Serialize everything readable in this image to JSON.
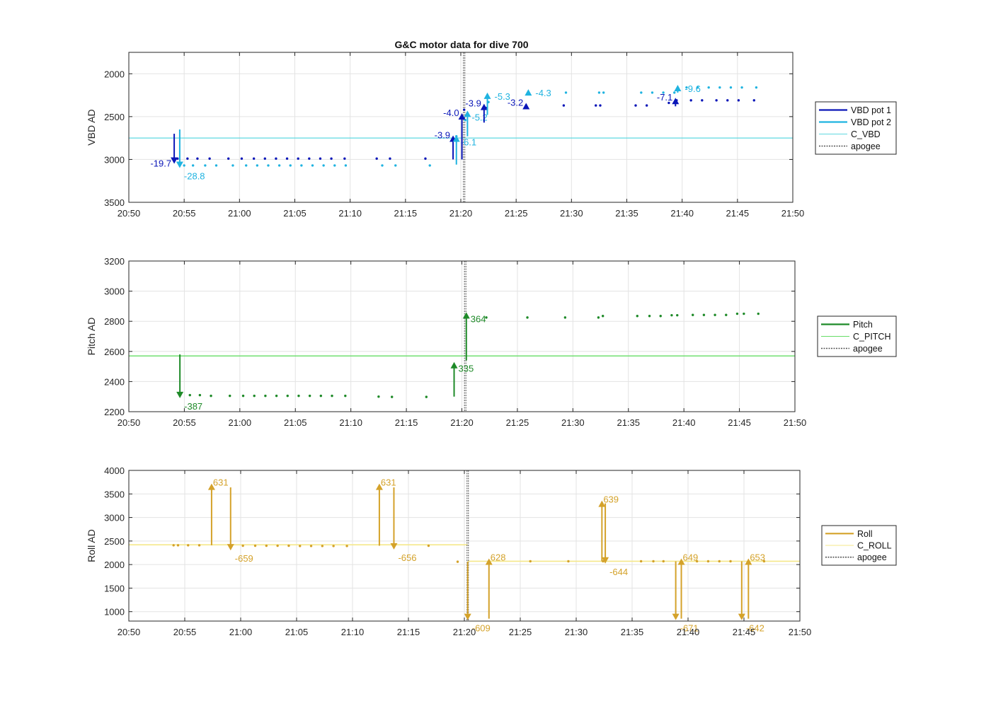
{
  "figure_title": "G&C motor data for dive 700",
  "time_ticks": [
    "20:50",
    "20:55",
    "21:00",
    "21:05",
    "21:10",
    "21:15",
    "21:20",
    "21:25",
    "21:30",
    "21:35",
    "21:40",
    "21:45",
    "21:50"
  ],
  "apogee_time": "21:20.3",
  "chart_data": [
    {
      "type": "scatter",
      "name": "vbd",
      "ylabel": "VBD AD",
      "xlim": [
        "20:50",
        "21:50"
      ],
      "ylim": [
        3500,
        1750
      ],
      "y_reversed": true,
      "yticks": [
        2000,
        2500,
        3000,
        3500
      ],
      "grid": true,
      "legend_position": "right",
      "legend": [
        {
          "label": "VBD pot 1",
          "color": "#0a16b8",
          "style": "line-thick"
        },
        {
          "label": "VBD pot 2",
          "color": "#1fb3e0",
          "style": "line-thick"
        },
        {
          "label": "C_VBD",
          "color": "#5fd8e0",
          "style": "line-thin"
        },
        {
          "label": "apogee",
          "color": "#555555",
          "style": "dotted"
        }
      ],
      "reference_line": {
        "label": "C_VBD",
        "y": 2750,
        "color": "#5fd8e0"
      },
      "series": [
        {
          "name": "VBD pot 1",
          "color": "#0a16b8",
          "offset_x": 0,
          "x": [
            "20:54.4",
            "20:55.3",
            "20:56.2",
            "20:57.3",
            "20:59.0",
            "21:00.2",
            "21:01.3",
            "21:02.3",
            "21:03.3",
            "21:04.3",
            "21:05.3",
            "21:06.3",
            "21:07.3",
            "21:08.3",
            "21:09.5",
            "21:12.4",
            "21:13.6",
            "21:16.8",
            "21:19.3",
            "21:20.3",
            "21:22.3",
            "21:25.9",
            "21:29.3",
            "21:32.2",
            "21:32.6",
            "21:35.8",
            "21:36.8",
            "21:38.8",
            "21:39.5",
            "21:40.8",
            "21:41.8",
            "21:43.1",
            "21:44.1",
            "21:45.1",
            "21:46.5"
          ],
          "y": [
            2990,
            2990,
            2990,
            2990,
            2990,
            2990,
            2990,
            2990,
            2990,
            2990,
            2990,
            2990,
            2990,
            2990,
            2990,
            2990,
            2990,
            2990,
            2780,
            2420,
            2400,
            2370,
            2370,
            2370,
            2370,
            2370,
            2370,
            2340,
            2310,
            2310,
            2310,
            2310,
            2310,
            2310,
            2310
          ]
        },
        {
          "name": "VBD pot 2",
          "color": "#1fb3e0",
          "offset_x": 0,
          "x": [
            "20:54.6",
            "20:55.0",
            "20:55.8",
            "20:56.9",
            "20:57.9",
            "20:59.4",
            "21:00.6",
            "21:01.6",
            "21:02.6",
            "21:03.6",
            "21:04.6",
            "21:05.6",
            "21:06.6",
            "21:07.6",
            "21:08.6",
            "21:09.6",
            "21:12.9",
            "21:14.1",
            "21:17.2",
            "21:19.6",
            "21:20.4",
            "21:22.5",
            "21:26.1",
            "21:29.5",
            "21:32.5",
            "21:32.9",
            "21:36.3",
            "21:37.3",
            "21:38.3",
            "21:39.3",
            "21:40.4",
            "21:41.4",
            "21:42.4",
            "21:43.4",
            "21:44.4",
            "21:45.4",
            "21:46.7"
          ],
          "y": [
            3070,
            3070,
            3070,
            3070,
            3070,
            3070,
            3070,
            3070,
            3070,
            3070,
            3070,
            3070,
            3070,
            3070,
            3070,
            3070,
            3070,
            3070,
            3070,
            2730,
            2540,
            2330,
            2220,
            2220,
            2220,
            2220,
            2220,
            2220,
            2220,
            2220,
            2160,
            2160,
            2160,
            2160,
            2160,
            2160,
            2160
          ]
        }
      ],
      "arrows": [
        {
          "x": "20:54.1",
          "y_from": 2700,
          "y_to": 3050,
          "color": "#0a16b8",
          "label": "-19.7",
          "label_side": "left"
        },
        {
          "x": "20:54.6",
          "y_from": 2650,
          "y_to": 3100,
          "color": "#1fb3e0",
          "label": "-28.8",
          "label_side": "right-below"
        },
        {
          "x": "21:19.3",
          "y_from": 3000,
          "y_to": 2720,
          "color": "#0a16b8",
          "label": "-3.9",
          "label_side": "left"
        },
        {
          "x": "21:19.6",
          "y_from": 3060,
          "y_to": 2720,
          "color": "#1fb3e0",
          "label": "-6.1",
          "label_side": "right-below"
        },
        {
          "x": "21:20.1",
          "y_from": 3000,
          "y_to": 2460,
          "color": "#0a16b8",
          "label": "-4.0",
          "label_side": "left"
        },
        {
          "x": "21:20.6",
          "y_from": 2730,
          "y_to": 2430,
          "color": "#1fb3e0",
          "label": "-5.2",
          "label_side": "right-below"
        },
        {
          "x": "21:22.1",
          "y_from": 2570,
          "y_to": 2350,
          "color": "#0a16b8",
          "label": "-3.9",
          "label_side": "left"
        },
        {
          "x": "21:22.4",
          "y_from": 2480,
          "y_to": 2220,
          "color": "#1fb3e0",
          "label": "-5.3",
          "label_side": "right"
        },
        {
          "x": "21:25.9",
          "y_from": 2400,
          "y_to": 2340,
          "color": "#0a16b8",
          "label": "-3.2",
          "label_side": "left"
        },
        {
          "x": "21:26.1",
          "y_from": 2250,
          "y_to": 2180,
          "color": "#1fb3e0",
          "label": "-4.3",
          "label_side": "right"
        },
        {
          "x": "21:39.4",
          "y_from": 2380,
          "y_to": 2280,
          "color": "#0a16b8",
          "label": "-7.1",
          "label_side": "left"
        },
        {
          "x": "21:39.6",
          "y_from": 2220,
          "y_to": 2130,
          "color": "#1fb3e0",
          "label": "-9.6",
          "label_side": "right"
        }
      ]
    },
    {
      "type": "scatter",
      "name": "pitch",
      "ylabel": "Pitch AD",
      "xlim": [
        "20:50",
        "21:50"
      ],
      "ylim": [
        2200,
        3200
      ],
      "y_reversed": false,
      "yticks": [
        2200,
        2400,
        2600,
        2800,
        3000,
        3200
      ],
      "grid": true,
      "legend_position": "right",
      "legend": [
        {
          "label": "Pitch",
          "color": "#1e8a28",
          "style": "line-thick"
        },
        {
          "label": "C_PITCH",
          "color": "#66dd66",
          "style": "line-thin"
        },
        {
          "label": "apogee",
          "color": "#555555",
          "style": "dotted"
        }
      ],
      "reference_line": {
        "label": "C_PITCH",
        "y": 2570,
        "color": "#66dd66"
      },
      "series": [
        {
          "name": "Pitch",
          "color": "#1e8a28",
          "x": [
            "20:55.5",
            "20:56.4",
            "20:57.4",
            "20:59.1",
            "21:00.3",
            "21:01.3",
            "21:02.3",
            "21:03.3",
            "21:04.3",
            "21:05.3",
            "21:06.3",
            "21:07.3",
            "21:08.3",
            "21:09.5",
            "21:12.5",
            "21:13.7",
            "21:16.8",
            "21:22.2",
            "21:25.9",
            "21:29.3",
            "21:32.3",
            "21:32.7",
            "21:35.8",
            "21:36.9",
            "21:37.9",
            "21:38.9",
            "21:39.4",
            "21:40.8",
            "21:41.8",
            "21:42.8",
            "21:43.8",
            "21:44.8",
            "21:45.4",
            "21:46.7"
          ],
          "y": [
            2310,
            2310,
            2305,
            2305,
            2305,
            2305,
            2305,
            2305,
            2305,
            2305,
            2305,
            2305,
            2305,
            2305,
            2300,
            2298,
            2298,
            2825,
            2825,
            2825,
            2825,
            2835,
            2835,
            2835,
            2835,
            2840,
            2840,
            2842,
            2842,
            2842,
            2842,
            2850,
            2850,
            2850
          ]
        }
      ],
      "arrows": [
        {
          "x": "20:54.6",
          "y_from": 2580,
          "y_to": 2290,
          "color": "#1e8a28",
          "label": "-387",
          "label_side": "right-below"
        },
        {
          "x": "21:19.3",
          "y_from": 2300,
          "y_to": 2530,
          "color": "#1e8a28",
          "label": "335",
          "label_side": "right-below"
        },
        {
          "x": "21:20.4",
          "y_from": 2540,
          "y_to": 2860,
          "color": "#1e8a28",
          "label": "364",
          "label_side": "right-below"
        }
      ]
    },
    {
      "type": "scatter",
      "name": "roll",
      "ylabel": "Roll AD",
      "xlim": [
        "20:50",
        "21:50"
      ],
      "ylim": [
        800,
        4000
      ],
      "y_reversed": false,
      "yticks": [
        1000,
        1500,
        2000,
        2500,
        3000,
        3500,
        4000
      ],
      "grid": true,
      "legend_position": "right",
      "legend": [
        {
          "label": "Roll",
          "color": "#d4a22a",
          "style": "line-thick"
        },
        {
          "label": "C_ROLL",
          "color": "#f5e88a",
          "style": "line-thin"
        },
        {
          "label": "apogee",
          "color": "#555555",
          "style": "dotted"
        }
      ],
      "reference_line_segments": [
        {
          "x_from": "20:50",
          "x_to": "21:20.3",
          "y": 2420
        },
        {
          "x_from": "21:20.3",
          "x_to": "21:50",
          "y": 2070
        }
      ],
      "reference_color": "#f5e88a",
      "series": [
        {
          "name": "Roll",
          "color": "#d4a22a",
          "x": [
            "20:54.0",
            "20:54.4",
            "20:55.3",
            "20:56.3",
            "20:59.0",
            "21:00.2",
            "21:01.3",
            "21:02.3",
            "21:03.3",
            "21:04.3",
            "21:05.3",
            "21:06.3",
            "21:07.3",
            "21:08.3",
            "21:09.5",
            "21:16.8",
            "21:19.4",
            "21:22.2",
            "21:25.9",
            "21:29.3",
            "21:32.4",
            "21:35.8",
            "21:36.9",
            "21:37.8",
            "21:40.8",
            "21:41.8",
            "21:42.8",
            "21:43.8",
            "21:46.8"
          ],
          "y": [
            2410,
            2410,
            2410,
            2410,
            2400,
            2400,
            2400,
            2400,
            2400,
            2400,
            2395,
            2395,
            2395,
            2395,
            2395,
            2400,
            2060,
            2070,
            2070,
            2070,
            2070,
            2070,
            2070,
            2070,
            2070,
            2070,
            2070,
            2070,
            2070
          ]
        }
      ],
      "arrows": [
        {
          "x": "20:57.4",
          "y_from": 2410,
          "y_to": 3720,
          "color": "#d4a22a",
          "label": "631",
          "label_side": "right-top"
        },
        {
          "x": "20:59.1",
          "y_from": 3640,
          "y_to": 2300,
          "color": "#d4a22a",
          "label": "-659",
          "label_side": "right-below"
        },
        {
          "x": "21:12.4",
          "y_from": 2400,
          "y_to": 3720,
          "color": "#d4a22a",
          "label": "631",
          "label_side": "right-top"
        },
        {
          "x": "21:13.7",
          "y_from": 3640,
          "y_to": 2320,
          "color": "#d4a22a",
          "label": "-656",
          "label_side": "right-below"
        },
        {
          "x": "21:20.3",
          "y_from": 2060,
          "y_to": 820,
          "color": "#d4a22a",
          "label": "-609",
          "label_side": "right-below"
        },
        {
          "x": "21:22.2",
          "y_from": 850,
          "y_to": 2130,
          "color": "#d4a22a",
          "label": "628",
          "label_side": "right-top"
        },
        {
          "x": "21:32.3",
          "y_from": 2070,
          "y_to": 3360,
          "color": "#d4a22a",
          "label": "639",
          "label_side": "right-top"
        },
        {
          "x": "21:32.6",
          "y_from": 3300,
          "y_to": 2020,
          "color": "#d4a22a",
          "label": "-644",
          "label_side": "right-below"
        },
        {
          "x": "21:38.9",
          "y_from": 2070,
          "y_to": 820,
          "color": "#d4a22a",
          "label": "-671",
          "label_side": "right-below"
        },
        {
          "x": "21:39.4",
          "y_from": 850,
          "y_to": 2130,
          "color": "#d4a22a",
          "label": "649",
          "label_side": "right-top"
        },
        {
          "x": "21:44.8",
          "y_from": 2070,
          "y_to": 820,
          "color": "#d4a22a",
          "label": "-642",
          "label_side": "right-below"
        },
        {
          "x": "21:45.4",
          "y_from": 850,
          "y_to": 2130,
          "color": "#d4a22a",
          "label": "653",
          "label_side": "right-top"
        }
      ]
    }
  ]
}
